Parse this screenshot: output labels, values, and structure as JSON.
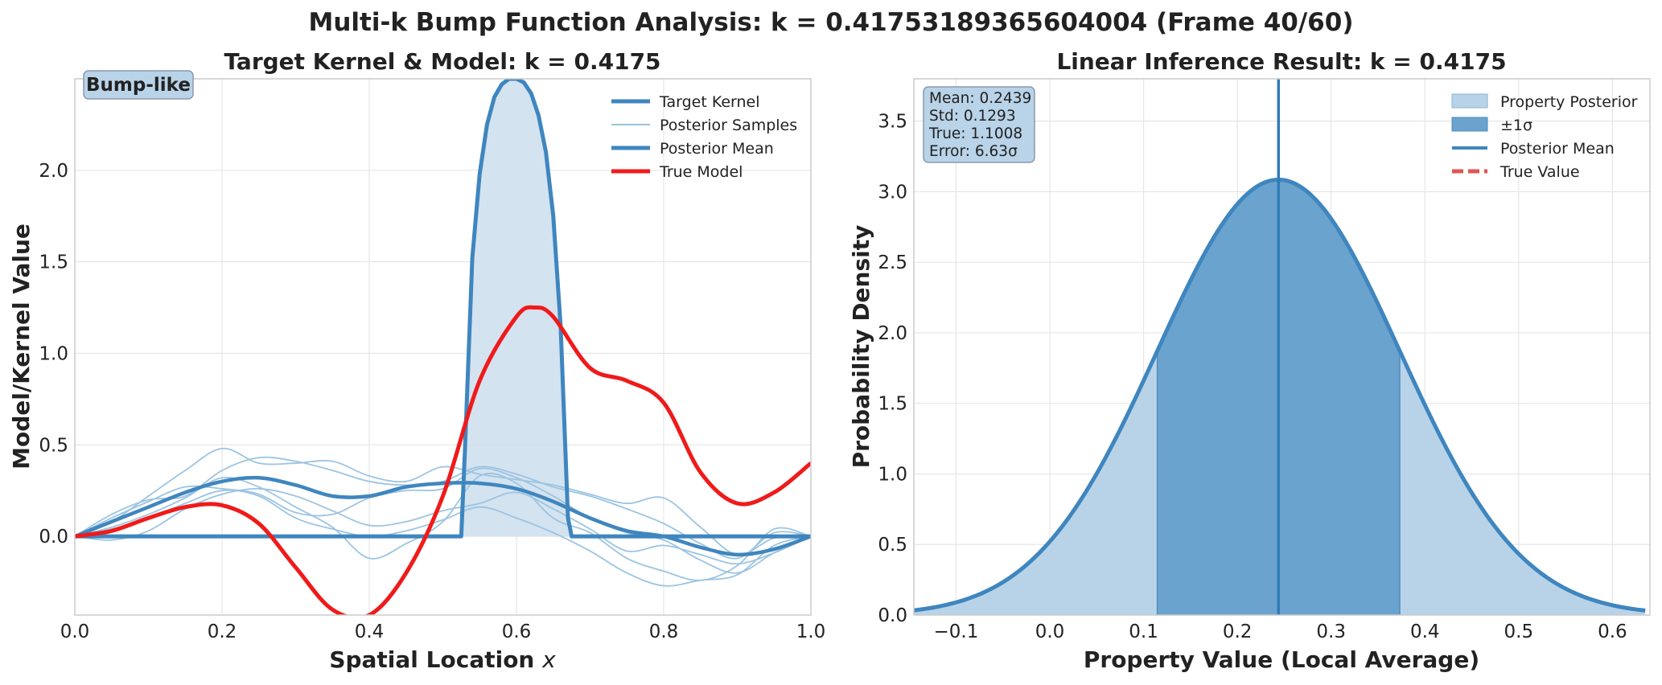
{
  "figure": {
    "suptitle": "Multi-k Bump Function Analysis: k = 0.41753189365604004 (Frame 40/60)"
  },
  "colors": {
    "kernel": "#3f86bf",
    "kernel_fill": "#cfe0ee",
    "samples": "#9cc4e2",
    "true_model": "#f01a1a",
    "posterior_fill": "#b8d3e8",
    "sigma_fill": "#6aa3cd",
    "true_value": "#e05555",
    "badge_fill": "#b9d3e8"
  },
  "chart_data": [
    {
      "type": "line",
      "title": "Target Kernel & Model: k = 0.4175",
      "xlabel": "Spatial Location x",
      "ylabel": "Model/Kernel Value",
      "xlim": [
        0.0,
        1.0
      ],
      "ylim": [
        -0.43,
        2.5
      ],
      "xticks": [
        "0.0",
        "0.2",
        "0.4",
        "0.6",
        "0.8",
        "1.0"
      ],
      "yticks": [
        "0.0",
        "0.5",
        "1.0",
        "1.5",
        "2.0"
      ],
      "badge": "Bump-like",
      "legend_position": "top-right",
      "legend": [
        "Target Kernel",
        "Posterior Samples",
        "Posterior Mean",
        "True Model"
      ],
      "grid": true,
      "kernel": {
        "name": "Target Kernel",
        "x": [
          0.0,
          0.525,
          0.53,
          0.54,
          0.55,
          0.56,
          0.57,
          0.58,
          0.59,
          0.6,
          0.61,
          0.62,
          0.63,
          0.64,
          0.65,
          0.66,
          0.67,
          0.675,
          1.0
        ],
        "y": [
          0.0,
          0.0,
          0.47,
          1.52,
          1.98,
          2.25,
          2.4,
          2.47,
          2.5,
          2.5,
          2.48,
          2.42,
          2.3,
          2.1,
          1.75,
          1.15,
          0.1,
          0.0,
          0.0
        ]
      },
      "posterior_mean": {
        "name": "Posterior Mean",
        "x": [
          0.0,
          0.05,
          0.1,
          0.15,
          0.2,
          0.25,
          0.3,
          0.35,
          0.4,
          0.45,
          0.5,
          0.55,
          0.6,
          0.65,
          0.7,
          0.75,
          0.8,
          0.85,
          0.9,
          0.95,
          1.0
        ],
        "y": [
          0.0,
          0.08,
          0.16,
          0.24,
          0.3,
          0.32,
          0.28,
          0.22,
          0.22,
          0.27,
          0.29,
          0.29,
          0.26,
          0.19,
          0.1,
          0.03,
          0.0,
          -0.06,
          -0.1,
          -0.07,
          0.0
        ]
      },
      "true_model": {
        "name": "True Model",
        "x": [
          0.0,
          0.05,
          0.1,
          0.15,
          0.2,
          0.25,
          0.3,
          0.35,
          0.4,
          0.45,
          0.5,
          0.55,
          0.6,
          0.625,
          0.65,
          0.7,
          0.75,
          0.8,
          0.85,
          0.9,
          0.95,
          1.0
        ],
        "y": [
          0.0,
          0.03,
          0.1,
          0.16,
          0.17,
          0.07,
          -0.17,
          -0.4,
          -0.43,
          -0.2,
          0.22,
          0.85,
          1.2,
          1.25,
          1.2,
          0.92,
          0.85,
          0.73,
          0.35,
          0.18,
          0.24,
          0.4
        ]
      },
      "posterior_samples": {
        "name": "Posterior Samples",
        "x": [
          0.0,
          0.05,
          0.1,
          0.15,
          0.2,
          0.25,
          0.3,
          0.35,
          0.4,
          0.45,
          0.5,
          0.55,
          0.6,
          0.65,
          0.7,
          0.75,
          0.8,
          0.85,
          0.9,
          0.95,
          1.0
        ],
        "curves": [
          [
            0.0,
            0.12,
            0.2,
            0.22,
            0.36,
            0.43,
            0.41,
            0.36,
            0.3,
            0.28,
            0.3,
            0.38,
            0.34,
            0.27,
            0.22,
            0.15,
            0.07,
            -0.04,
            -0.12,
            0.02,
            0.0
          ],
          [
            0.0,
            0.08,
            0.22,
            0.36,
            0.48,
            0.4,
            0.4,
            0.41,
            0.33,
            0.3,
            0.38,
            0.34,
            0.31,
            0.28,
            0.23,
            0.18,
            0.21,
            0.05,
            -0.1,
            -0.01,
            0.0
          ],
          [
            0.0,
            0.05,
            0.12,
            0.21,
            0.32,
            0.27,
            0.16,
            0.05,
            -0.12,
            -0.04,
            0.08,
            0.33,
            0.29,
            0.1,
            0.02,
            -0.12,
            -0.19,
            -0.24,
            -0.16,
            0.04,
            0.0
          ],
          [
            0.0,
            -0.02,
            0.03,
            0.15,
            0.23,
            0.26,
            0.22,
            0.14,
            0.06,
            0.08,
            0.14,
            0.18,
            0.24,
            0.15,
            0.04,
            -0.08,
            -0.05,
            -0.1,
            -0.15,
            -0.09,
            0.0
          ],
          [
            0.0,
            0.1,
            0.19,
            0.27,
            0.26,
            0.23,
            0.13,
            0.12,
            0.21,
            0.25,
            0.26,
            0.37,
            0.32,
            0.22,
            0.1,
            0.02,
            -0.02,
            -0.13,
            -0.2,
            -0.09,
            0.0
          ],
          [
            0.0,
            0.04,
            0.1,
            0.18,
            0.25,
            0.22,
            0.1,
            0.04,
            0.0,
            0.03,
            0.09,
            0.16,
            0.1,
            0.02,
            -0.08,
            -0.2,
            -0.27,
            -0.24,
            -0.21,
            -0.05,
            0.0
          ]
        ]
      }
    },
    {
      "type": "area",
      "title": "Linear Inference Result: k = 0.4175",
      "xlabel": "Property Value (Local Average)",
      "ylabel": "Probability Density",
      "xlim": [
        -0.145,
        0.64
      ],
      "ylim": [
        0.0,
        3.8
      ],
      "xticks": [
        "−0.1",
        "0.0",
        "0.1",
        "0.2",
        "0.3",
        "0.4",
        "0.5",
        "0.6"
      ],
      "yticks": [
        "0.0",
        "0.5",
        "1.0",
        "1.5",
        "2.0",
        "2.5",
        "3.0",
        "3.5"
      ],
      "legend_position": "top-right",
      "legend": [
        "Property Posterior",
        "±1σ",
        "Posterior Mean",
        "True Value"
      ],
      "grid": true,
      "mean": 0.2439,
      "std": 0.1293,
      "true_value": 1.1008,
      "curve_xrange": [
        -0.145,
        0.635
      ],
      "stats_box": [
        "Mean: 0.2439",
        "Std: 0.1293",
        "True: 1.1008",
        "Error: 6.63σ"
      ]
    }
  ]
}
